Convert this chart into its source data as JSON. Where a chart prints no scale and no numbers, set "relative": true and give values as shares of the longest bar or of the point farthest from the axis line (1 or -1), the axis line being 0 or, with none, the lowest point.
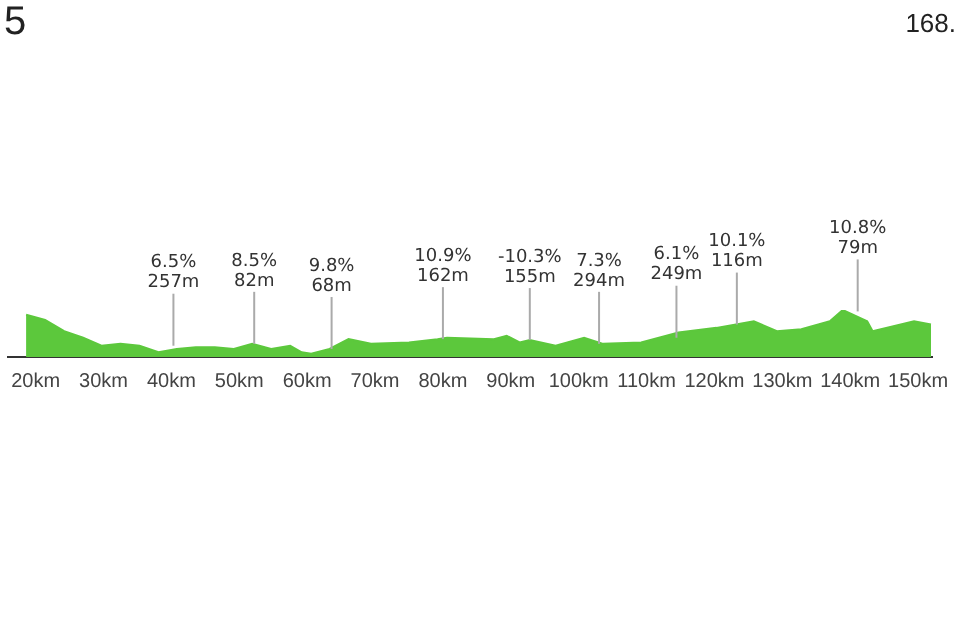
{
  "chart_data": {
    "type": "area",
    "title": "5",
    "relative": true,
    "color": "#5cc83c",
    "legend": false,
    "x": [
      18.6,
      21.4,
      24.2,
      27,
      29.7,
      32.5,
      35.3,
      38.1,
      40.8,
      43.6,
      46.4,
      49.2,
      51.9,
      54.7,
      57.5,
      59.2,
      60.6,
      63.3,
      66.1,
      69.4,
      75,
      79.2,
      80.6,
      87.5,
      89.4,
      91.3,
      92.8,
      96.6,
      100.8,
      103.6,
      109.2,
      114.7,
      120.3,
      125.8,
      129.2,
      132.8,
      137,
      138.9,
      142.5,
      143.3,
      149.4,
      151.9
    ],
    "values": [
      0.9,
      0.79,
      0.55,
      0.41,
      0.24,
      0.28,
      0.24,
      0.1,
      0.17,
      0.21,
      0.21,
      0.17,
      0.28,
      0.17,
      0.24,
      0.1,
      0.07,
      0.17,
      0.38,
      0.28,
      0.31,
      0.38,
      0.41,
      0.38,
      0.45,
      0.31,
      0.36,
      0.24,
      0.41,
      0.28,
      0.31,
      0.52,
      0.62,
      0.76,
      0.55,
      0.59,
      0.76,
      1,
      0.76,
      0.55,
      0.76,
      0.69
    ],
    "xlim": [
      16,
      152
    ],
    "xticks": [
      {
        "value": 20,
        "label": "20km"
      },
      {
        "value": 30,
        "label": "30km"
      },
      {
        "value": 40,
        "label": "40km"
      },
      {
        "value": 50,
        "label": "50km"
      },
      {
        "value": 60,
        "label": "60km"
      },
      {
        "value": 70,
        "label": "70km"
      },
      {
        "value": 80,
        "label": "80km"
      },
      {
        "value": 90,
        "label": "90km"
      },
      {
        "value": 100,
        "label": "100km"
      },
      {
        "value": 110,
        "label": "110km"
      },
      {
        "value": 120,
        "label": "120km"
      },
      {
        "value": 130,
        "label": "130km"
      },
      {
        "value": 140,
        "label": "140km"
      },
      {
        "value": 150,
        "label": "150km"
      }
    ],
    "annotations": [
      "168.",
      {
        "text": "6.5%\n257m",
        "x": 40.3,
        "y": 0.24
      },
      {
        "text": "8.5%\n82m",
        "x": 52.2,
        "y": 0.28
      },
      {
        "text": "9.8%\n68m",
        "x": 63.6,
        "y": 0.17
      },
      {
        "text": "10.9%\n162m",
        "x": 80,
        "y": 0.38
      },
      {
        "text": "-10.3%\n155m",
        "x": 92.8,
        "y": 0.36
      },
      {
        "text": "7.3%\n294m",
        "x": 103,
        "y": 0.28
      },
      {
        "text": "6.1%\n249m",
        "x": 114.4,
        "y": 0.41
      },
      {
        "text": "10.1%\n116m",
        "x": 123.3,
        "y": 0.69
      },
      {
        "text": "10.8%\n79m",
        "x": 141.1,
        "y": 0.97
      }
    ]
  }
}
